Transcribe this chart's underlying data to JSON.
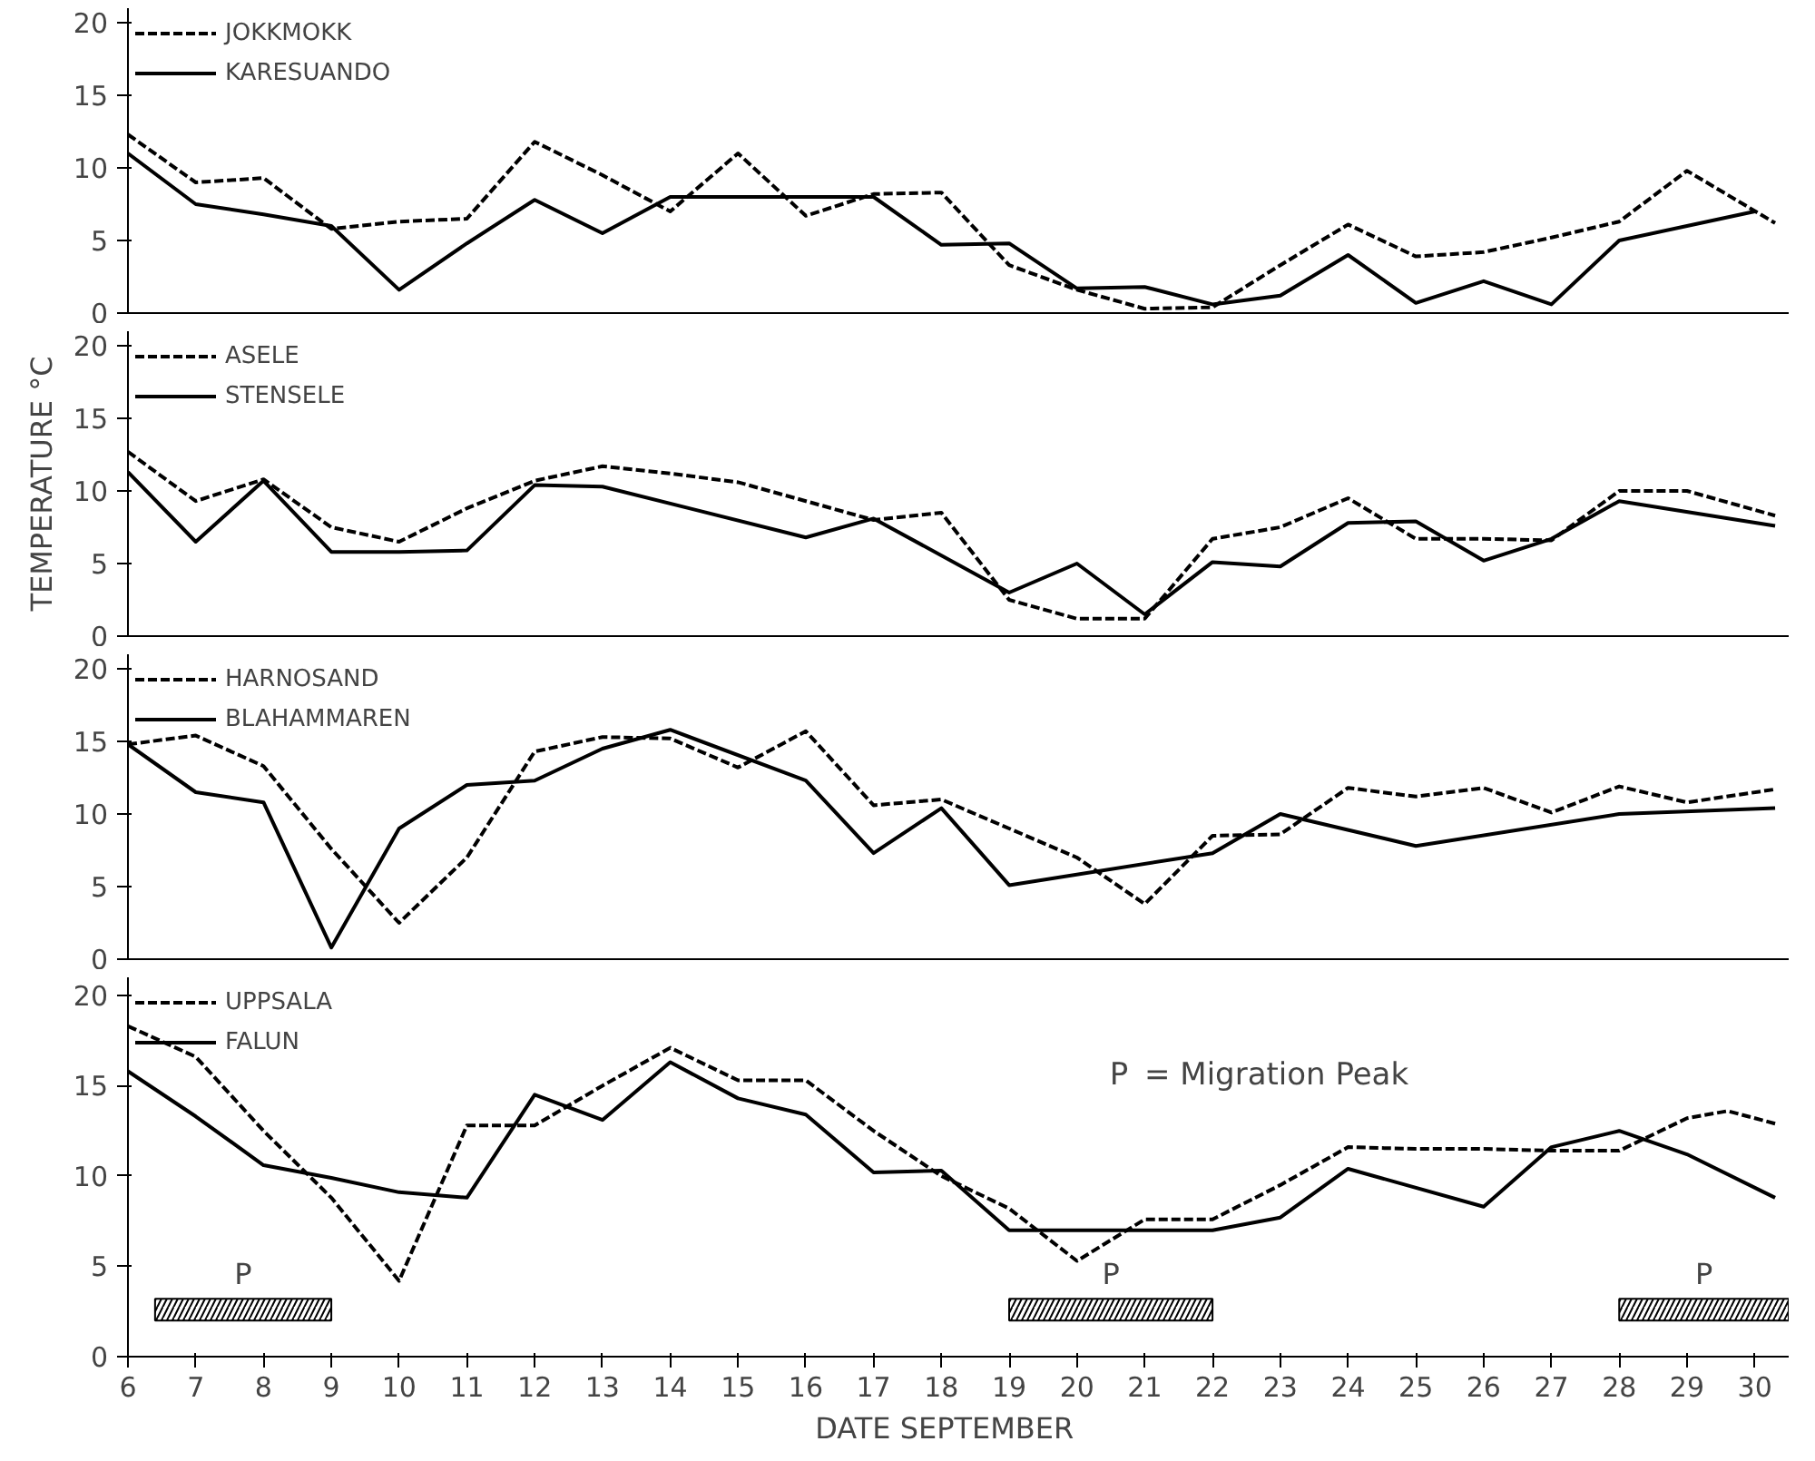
{
  "chart_data": [
    {
      "type": "line",
      "xlim": [
        6,
        30.5
      ],
      "ylim": [
        0,
        21
      ],
      "xticks": [
        6,
        7,
        8,
        9,
        10,
        11,
        12,
        13,
        14,
        15,
        16,
        17,
        18,
        19,
        20,
        21,
        22,
        23,
        24,
        25,
        26,
        27,
        28,
        29,
        30
      ],
      "yticks": [
        0,
        5,
        10,
        15,
        20
      ],
      "tick_labels": "y",
      "legend": "top left",
      "grid": false,
      "series": [
        {
          "name": "JOKKMOKK",
          "color": "#000000",
          "line_style": "dashed",
          "x": [
            6,
            7,
            8,
            9,
            10,
            11,
            12,
            13,
            14,
            15,
            16,
            17,
            18,
            19,
            20,
            21,
            22,
            23,
            24,
            25,
            26,
            27,
            28,
            29,
            30.3
          ],
          "values": [
            12.3,
            9,
            9.3,
            5.8,
            6.3,
            6.5,
            11.8,
            9.5,
            7,
            11,
            6.7,
            8.2,
            8.3,
            3.3,
            1.6,
            0.3,
            0.4,
            3.3,
            6.1,
            3.9,
            4.2,
            5.2,
            6.3,
            9.8,
            6.2
          ]
        },
        {
          "name": "KARESUANDO",
          "color": "#000000",
          "line_style": "solid",
          "x": [
            6,
            7,
            8,
            9,
            10,
            11,
            12,
            13,
            14,
            15,
            16,
            17,
            18,
            19,
            20,
            21,
            22,
            23,
            24,
            25,
            26,
            27,
            28,
            29,
            30
          ],
          "values": [
            11,
            7.5,
            6.8,
            6,
            1.6,
            4.8,
            7.8,
            5.5,
            8,
            8,
            8,
            8,
            4.7,
            4.8,
            1.7,
            1.8,
            0.6,
            1.2,
            4,
            0.7,
            2.2,
            0.6,
            5,
            6,
            7
          ]
        }
      ]
    },
    {
      "type": "line",
      "xlim": [
        6,
        30.5
      ],
      "ylim": [
        0,
        21
      ],
      "xticks": [
        6,
        7,
        8,
        9,
        10,
        11,
        12,
        13,
        14,
        15,
        16,
        17,
        18,
        19,
        20,
        21,
        22,
        23,
        24,
        25,
        26,
        27,
        28,
        29,
        30
      ],
      "yticks": [
        0,
        5,
        10,
        15,
        20
      ],
      "tick_labels": "y",
      "legend": "top left",
      "grid": false,
      "ylabel": "TEMPERATURE °C",
      "series": [
        {
          "name": "ASELE",
          "color": "#000000",
          "line_style": "dashed",
          "x": [
            6,
            7,
            8,
            9,
            10,
            11,
            12,
            13,
            14,
            15,
            16,
            17,
            18,
            19,
            20,
            21,
            22,
            23,
            24,
            25,
            26,
            27,
            28,
            29,
            30.3
          ],
          "values": [
            12.7,
            9.3,
            10.8,
            7.5,
            6.5,
            8.8,
            10.7,
            11.7,
            11.2,
            10.6,
            9.3,
            8,
            8.5,
            2.5,
            1.2,
            1.2,
            6.7,
            7.5,
            9.5,
            6.7,
            6.7,
            6.6,
            10,
            10,
            8.3
          ]
        },
        {
          "name": "STENSELE",
          "color": "#000000",
          "line_style": "solid",
          "x": [
            6,
            7,
            8,
            9,
            10,
            11,
            12,
            13,
            16,
            17,
            19,
            20,
            21,
            22,
            23,
            24,
            25,
            26,
            27,
            28,
            30.3
          ],
          "values": [
            11.3,
            6.5,
            10.7,
            5.8,
            5.8,
            5.9,
            10.4,
            10.3,
            6.8,
            8.1,
            3,
            5,
            1.5,
            5.1,
            4.8,
            7.8,
            7.9,
            5.2,
            6.7,
            9.3,
            7.6
          ]
        }
      ]
    },
    {
      "type": "line",
      "xlim": [
        6,
        30.5
      ],
      "ylim": [
        0,
        21
      ],
      "xticks": [
        6,
        7,
        8,
        9,
        10,
        11,
        12,
        13,
        14,
        15,
        16,
        17,
        18,
        19,
        20,
        21,
        22,
        23,
        24,
        25,
        26,
        27,
        28,
        29,
        30
      ],
      "yticks": [
        0,
        5,
        10,
        15,
        20
      ],
      "tick_labels": "y",
      "legend": "top left",
      "grid": false,
      "series": [
        {
          "name": "HARNOSAND",
          "color": "#000000",
          "line_style": "dashed",
          "x": [
            6,
            7,
            8,
            9,
            10,
            11,
            12,
            13,
            14,
            15,
            16,
            17,
            18,
            19,
            20,
            21,
            22,
            23,
            24,
            25,
            26,
            27,
            28,
            29,
            30.3
          ],
          "values": [
            14.8,
            15.4,
            13.3,
            7.6,
            2.5,
            7,
            14.3,
            15.3,
            15.2,
            13.2,
            15.7,
            10.6,
            11,
            9,
            7,
            3.8,
            8.5,
            8.6,
            11.8,
            11.2,
            11.8,
            10.1,
            11.9,
            10.8,
            11.7
          ]
        },
        {
          "name": "BLAHAMMAREN",
          "color": "#000000",
          "line_style": "solid",
          "x": [
            6,
            7,
            8,
            9,
            10,
            11,
            12,
            13,
            14,
            16,
            17,
            18,
            19,
            22,
            23,
            25,
            28,
            30.3
          ],
          "values": [
            14.8,
            11.5,
            10.8,
            0.8,
            9,
            12,
            12.3,
            14.5,
            15.8,
            12.3,
            7.3,
            10.4,
            5.1,
            7.3,
            10,
            7.8,
            10,
            10.4
          ]
        }
      ]
    },
    {
      "type": "line",
      "xlim": [
        6,
        30.5
      ],
      "ylim": [
        0,
        21
      ],
      "xticks": [
        6,
        7,
        8,
        9,
        10,
        11,
        12,
        13,
        14,
        15,
        16,
        17,
        18,
        19,
        20,
        21,
        22,
        23,
        24,
        25,
        26,
        27,
        28,
        29,
        30
      ],
      "yticks": [
        0,
        5,
        10,
        15,
        20
      ],
      "legend": "top left",
      "grid": false,
      "xlabel": "DATE    SEPTEMBER",
      "series": [
        {
          "name": "UPPSALA",
          "color": "#000000",
          "line_style": "dashed",
          "x": [
            6,
            7,
            8,
            9,
            10,
            11,
            12,
            13,
            14,
            15,
            16,
            17,
            18,
            19,
            20,
            21,
            22,
            23,
            24,
            25,
            26,
            27,
            28,
            29,
            29.6,
            30.3
          ],
          "values": [
            18.3,
            16.6,
            12.5,
            8.8,
            4.2,
            12.8,
            12.8,
            15,
            17.1,
            15.3,
            15.3,
            12.5,
            10,
            8.2,
            5.3,
            7.6,
            7.6,
            9.5,
            11.6,
            11.5,
            11.5,
            11.4,
            11.4,
            13.2,
            13.6,
            12.9
          ]
        },
        {
          "name": "FALUN",
          "color": "#000000",
          "line_style": "solid",
          "x": [
            6,
            7,
            8,
            9,
            10,
            11,
            12,
            13,
            14,
            15,
            16,
            17,
            18,
            19,
            20,
            21,
            22,
            23,
            24,
            26,
            27,
            28,
            29,
            30.3
          ],
          "values": [
            15.8,
            13.3,
            10.6,
            9.9,
            9.1,
            8.8,
            14.5,
            13.1,
            16.3,
            14.3,
            13.4,
            10.2,
            10.3,
            7,
            7,
            7,
            7,
            7.7,
            10.4,
            8.3,
            11.6,
            12.5,
            11.2,
            8.8
          ]
        }
      ],
      "bands": [
        {
          "axis": "x",
          "from": 6.4,
          "to": 9,
          "label": "P",
          "color": "#000000"
        },
        {
          "axis": "x",
          "from": 19,
          "to": 22,
          "label": "P",
          "color": "#000000"
        },
        {
          "axis": "x",
          "from": 28,
          "to": 30.5,
          "label": "P",
          "color": "#000000"
        }
      ],
      "annotations": [
        "= Migration Peak"
      ]
    }
  ]
}
